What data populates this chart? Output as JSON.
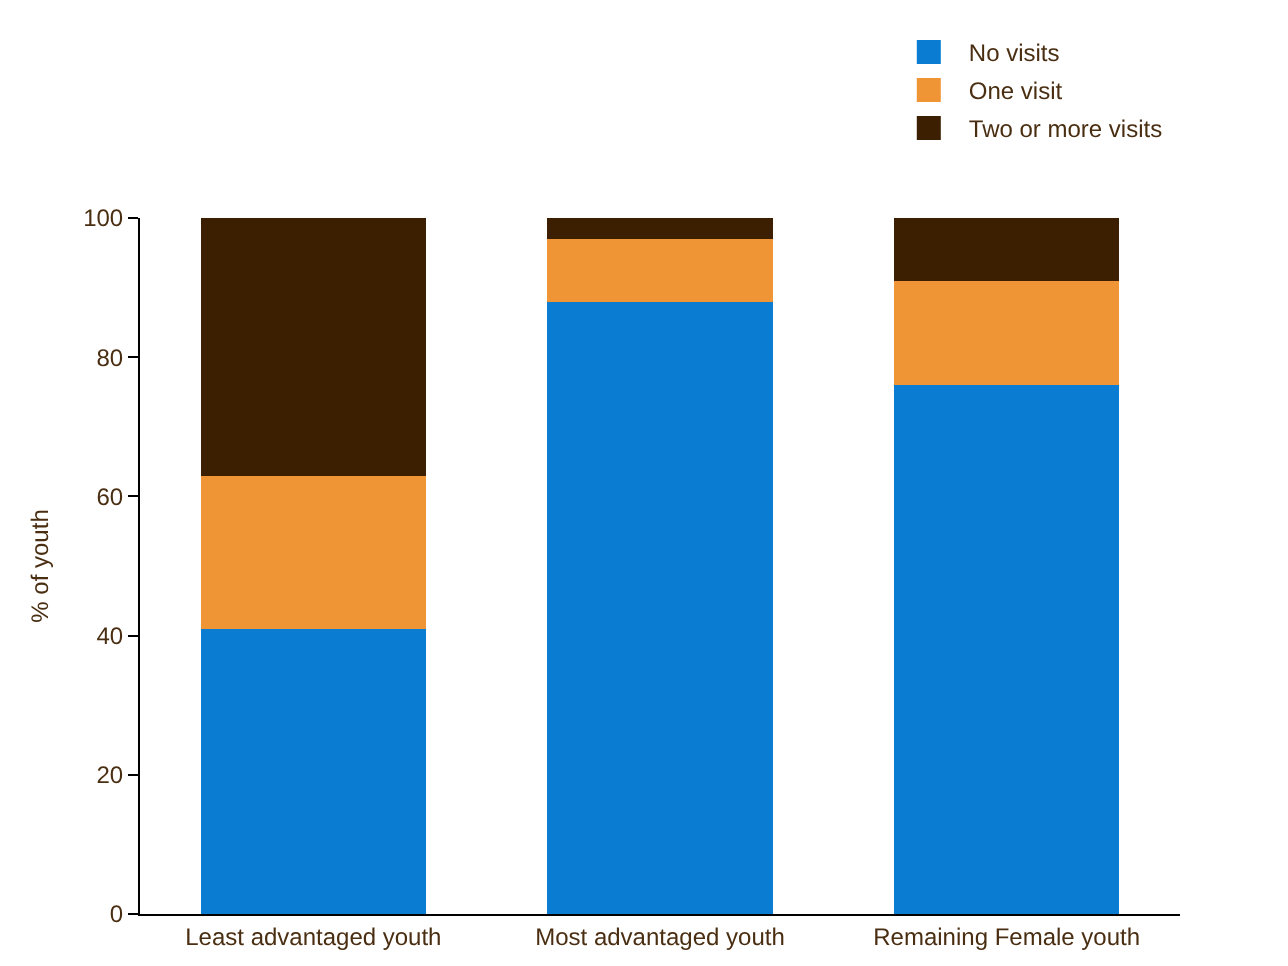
{
  "chart_data": {
    "type": "bar",
    "stacked": true,
    "ylabel": "% of youth",
    "categories": [
      "Least advantaged youth",
      "Most advantaged youth",
      "Remaining Female youth"
    ],
    "series": [
      {
        "name": "No visits",
        "color": "#0a7dd2",
        "values": [
          41,
          88,
          76
        ]
      },
      {
        "name": "One visit",
        "color": "#f09535",
        "values": [
          22,
          9,
          15
        ]
      },
      {
        "name": "Two or more visits",
        "color": "#3c1f00",
        "values": [
          37,
          3,
          9
        ]
      }
    ],
    "ylim": [
      0,
      100
    ],
    "yticks": [
      0,
      20,
      40,
      60,
      80,
      100
    ],
    "grid": false,
    "legend": "top right"
  }
}
